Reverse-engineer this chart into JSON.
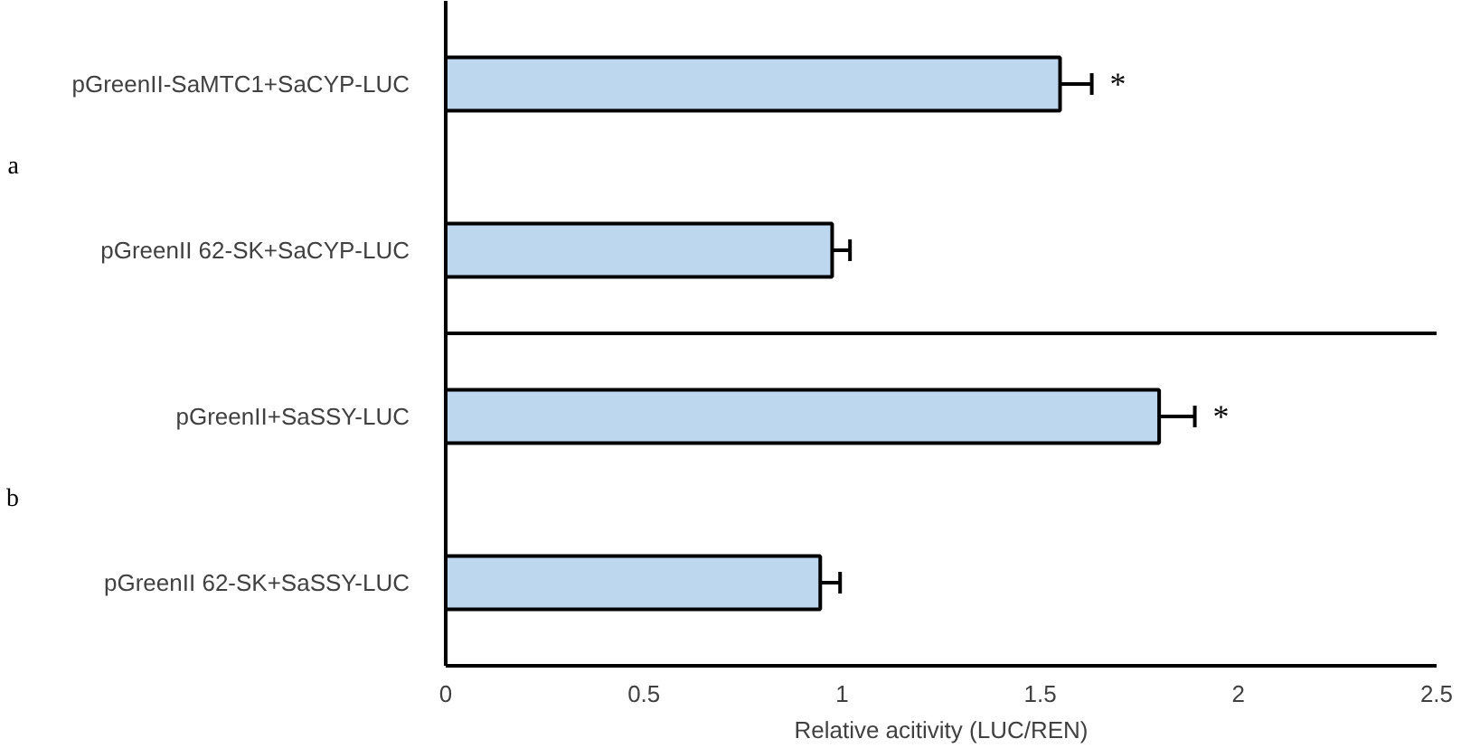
{
  "chart_data": {
    "type": "bar",
    "orientation": "horizontal",
    "xlabel": "Relative acitivity (LUC/REN)",
    "categories": [
      "pGreenII-SaMTC1+SaCYP-LUC",
      "pGreenII 62-SK+SaCYP-LUC",
      "pGreenII+SaSSY-LUC",
      "pGreenII 62-SK+SaSSY-LUC"
    ],
    "values": [
      1.55,
      0.975,
      1.8,
      0.945
    ],
    "errors": [
      0.08,
      0.045,
      0.09,
      0.05
    ],
    "color": "#bdd7ee",
    "xlim": [
      0,
      2.5
    ],
    "xticks": [
      0,
      0.5,
      1,
      1.5,
      2,
      2.5
    ],
    "grid": false,
    "annotations": [
      {
        "text": "*",
        "x": 1.55,
        "y": "pGreenII-SaMTC1+SaCYP-LUC"
      },
      {
        "text": "*",
        "x": 1.8,
        "y": "pGreenII+SaSSY-LUC"
      },
      "a",
      "b"
    ]
  }
}
